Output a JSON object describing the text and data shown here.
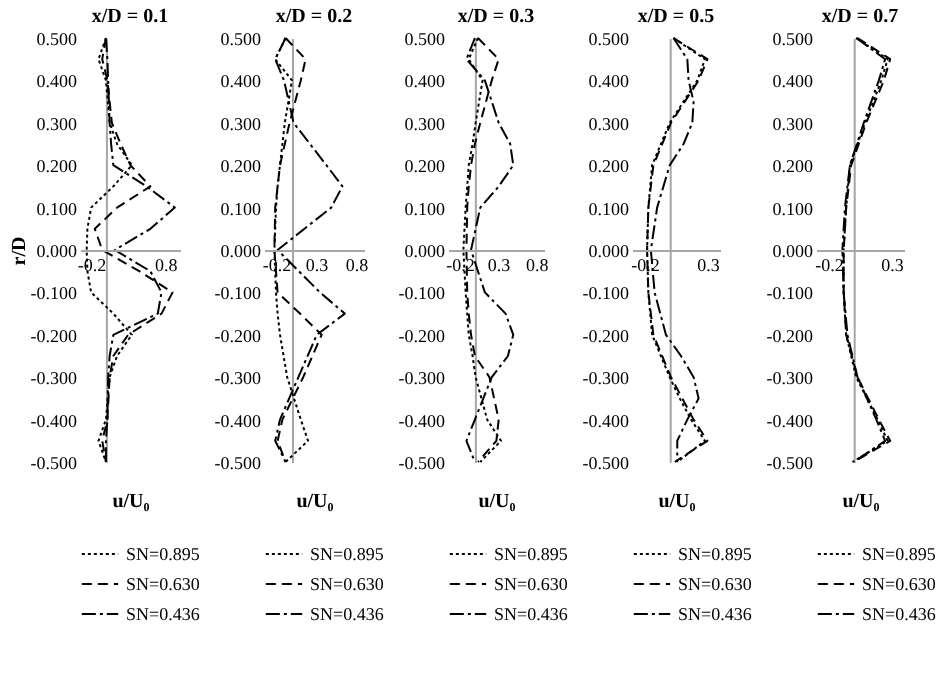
{
  "chart_data": [
    {
      "type": "line",
      "title": "x/D = 0.1",
      "xlabel": "u/U₀",
      "ylabel": "r/D",
      "xlim": [
        -0.35,
        1.0
      ],
      "xticks": [
        -0.2,
        0.8
      ],
      "ylim": [
        -0.5,
        0.5
      ],
      "yticks": [
        {
          "value": 0.5,
          "label": "0.500"
        },
        {
          "value": 0.4,
          "label": "0.400"
        },
        {
          "value": 0.3,
          "label": "0.300"
        },
        {
          "value": 0.2,
          "label": "0.200"
        },
        {
          "value": 0.1,
          "label": "0.100"
        },
        {
          "value": 0,
          "label": "0.000"
        },
        {
          "value": -0.1,
          "label": "-0.100"
        },
        {
          "value": -0.2,
          "label": "-0.200"
        },
        {
          "value": -0.3,
          "label": "-0.300"
        },
        {
          "value": -0.4,
          "label": "-0.400"
        },
        {
          "value": -0.5,
          "label": "-0.500"
        }
      ],
      "legend": "bottom",
      "series": [
        {
          "name": "SN=0.895",
          "color": "#000000",
          "line_style": "dotted",
          "x": [
            0,
            -0.1,
            0,
            0.05,
            0.15,
            0.35,
            0.1,
            -0.2,
            -0.25,
            -0.26,
            -0.25,
            -0.2,
            0.1,
            0.35,
            0.15,
            0.05,
            0,
            -0.1,
            0
          ],
          "values": [
            0.5,
            0.45,
            0.4,
            0.3,
            0.25,
            0.2,
            0.15,
            0.1,
            0.05,
            0,
            -0.05,
            -0.1,
            -0.15,
            -0.2,
            -0.25,
            -0.3,
            -0.4,
            -0.45,
            -0.5
          ]
        },
        {
          "name": "SN=0.630",
          "color": "#000000",
          "line_style": "dashed",
          "x": [
            0,
            -0.05,
            0.02,
            0.08,
            0.2,
            0.33,
            0.6,
            0.15,
            -0.15,
            -0.05,
            0.45,
            0.9,
            0.75,
            0.3,
            0.1,
            0.05,
            0.02,
            -0.05,
            0
          ],
          "values": [
            0.5,
            0.45,
            0.4,
            0.3,
            0.25,
            0.2,
            0.15,
            0.1,
            0.05,
            0,
            -0.05,
            -0.1,
            -0.15,
            -0.2,
            -0.25,
            -0.3,
            -0.4,
            -0.45,
            -0.5
          ]
        },
        {
          "name": "SN=0.436",
          "color": "#000000",
          "line_style": "dashdot",
          "x": [
            0,
            0.02,
            0.03,
            0.05,
            0.07,
            0.1,
            0.55,
            0.93,
            0.6,
            0.12,
            0.6,
            0.75,
            0.7,
            0.1,
            0.05,
            0.03,
            0.02,
            0,
            0
          ],
          "values": [
            0.5,
            0.45,
            0.4,
            0.3,
            0.25,
            0.2,
            0.15,
            0.1,
            0.05,
            0,
            -0.05,
            -0.1,
            -0.15,
            -0.2,
            -0.25,
            -0.3,
            -0.4,
            -0.45,
            -0.5
          ]
        }
      ]
    },
    {
      "type": "line",
      "title": "x/D = 0.2",
      "xlabel": "u/U₀",
      "xlim": [
        -0.35,
        0.9
      ],
      "xticks": [
        -0.2,
        0.3,
        0.8
      ],
      "ylim": [
        -0.5,
        0.5
      ],
      "yticks": [
        {
          "value": 0.5,
          "label": "0.500"
        },
        {
          "value": 0.4,
          "label": "0.400"
        },
        {
          "value": 0.3,
          "label": "0.300"
        },
        {
          "value": 0.2,
          "label": "0.200"
        },
        {
          "value": 0.1,
          "label": "0.100"
        },
        {
          "value": 0,
          "label": "0.000"
        },
        {
          "value": -0.1,
          "label": "-0.100"
        },
        {
          "value": -0.2,
          "label": "-0.200"
        },
        {
          "value": -0.3,
          "label": "-0.300"
        },
        {
          "value": -0.4,
          "label": "-0.400"
        },
        {
          "value": -0.5,
          "label": "-0.500"
        }
      ],
      "legend": "bottom",
      "series": [
        {
          "name": "SN=0.895",
          "color": "#000000",
          "line_style": "dotted",
          "x": [
            -0.08,
            -0.21,
            0,
            -0.09,
            -0.15,
            -0.18,
            -0.2,
            -0.22,
            -0.2,
            -0.18,
            -0.15,
            -0.06,
            0.11,
            0.2,
            -0.08
          ],
          "values": [
            0.5,
            0.45,
            0.4,
            0.3,
            0.2,
            0.15,
            0.1,
            0,
            -0.1,
            -0.15,
            -0.2,
            -0.3,
            -0.4,
            -0.45,
            -0.5
          ]
        },
        {
          "name": "SN=0.630",
          "color": "#000000",
          "line_style": "dashed",
          "x": [
            -0.08,
            0.17,
            0.11,
            -0.03,
            -0.15,
            -0.18,
            -0.21,
            -0.22,
            -0.18,
            0.1,
            0.37,
            0.14,
            -0.12,
            -0.18,
            -0.08
          ],
          "values": [
            0.5,
            0.45,
            0.4,
            0.3,
            0.2,
            0.15,
            0.1,
            0,
            -0.1,
            -0.15,
            -0.2,
            -0.3,
            -0.4,
            -0.45,
            -0.5
          ]
        },
        {
          "name": "SN=0.436",
          "color": "#000000",
          "line_style": "dashdot",
          "x": [
            -0.08,
            -0.21,
            -0.1,
            0.02,
            0.43,
            0.63,
            0.49,
            -0.18,
            0.35,
            0.66,
            0.31,
            0.08,
            -0.15,
            -0.21,
            -0.08
          ],
          "values": [
            0.5,
            0.45,
            0.4,
            0.3,
            0.2,
            0.15,
            0.1,
            0,
            -0.1,
            -0.15,
            -0.2,
            -0.3,
            -0.4,
            -0.45,
            -0.5
          ]
        }
      ]
    },
    {
      "type": "line",
      "title": "x/D = 0.3",
      "xlabel": "u/U₀",
      "xlim": [
        -0.35,
        0.9
      ],
      "xticks": [
        -0.2,
        0.3,
        0.8
      ],
      "ylim": [
        -0.5,
        0.5
      ],
      "yticks": [
        {
          "value": 0.5,
          "label": "0.500"
        },
        {
          "value": 0.4,
          "label": "0.400"
        },
        {
          "value": 0.3,
          "label": "0.300"
        },
        {
          "value": 0.2,
          "label": "0.200"
        },
        {
          "value": 0.1,
          "label": "0.100"
        },
        {
          "value": 0,
          "label": "0.000"
        },
        {
          "value": -0.1,
          "label": "-0.100"
        },
        {
          "value": -0.2,
          "label": "-0.200"
        },
        {
          "value": -0.3,
          "label": "-0.300"
        },
        {
          "value": -0.4,
          "label": "-0.400"
        },
        {
          "value": -0.5,
          "label": "-0.500"
        }
      ],
      "legend": "bottom",
      "series": [
        {
          "name": "SN=0.895",
          "color": "#000000",
          "line_style": "dotted",
          "x": [
            0.04,
            -0.08,
            0.1,
            0.01,
            -0.03,
            -0.08,
            -0.1,
            -0.12,
            -0.15,
            -0.12,
            -0.1,
            -0.08,
            -0.03,
            0.01,
            0.16,
            0.34,
            0.07
          ],
          "values": [
            0.5,
            0.45,
            0.4,
            0.3,
            0.25,
            0.2,
            0.15,
            0.1,
            0,
            -0.1,
            -0.15,
            -0.2,
            -0.25,
            -0.3,
            -0.4,
            -0.45,
            -0.5
          ]
        },
        {
          "name": "SN=0.630",
          "color": "#000000",
          "line_style": "dashed",
          "x": [
            0.04,
            0.31,
            0.22,
            0.07,
            0,
            -0.05,
            -0.08,
            -0.1,
            -0.11,
            -0.1,
            -0.08,
            -0.05,
            0,
            0.19,
            0.31,
            0.28,
            0.04
          ],
          "values": [
            0.5,
            0.45,
            0.4,
            0.3,
            0.25,
            0.2,
            0.15,
            0.1,
            0,
            -0.1,
            -0.15,
            -0.2,
            -0.25,
            -0.3,
            -0.4,
            -0.45,
            -0.5
          ]
        },
        {
          "name": "SN=0.436",
          "color": "#000000",
          "line_style": "dashdot",
          "x": [
            0,
            -0.11,
            0.13,
            0.31,
            0.46,
            0.5,
            0.31,
            0.07,
            -0.05,
            0.13,
            0.4,
            0.5,
            0.43,
            0.22,
            0,
            -0.11,
            0
          ],
          "values": [
            0.5,
            0.45,
            0.4,
            0.3,
            0.25,
            0.2,
            0.15,
            0.1,
            0,
            -0.1,
            -0.15,
            -0.2,
            -0.25,
            -0.3,
            -0.4,
            -0.45,
            -0.5
          ]
        }
      ]
    },
    {
      "type": "line",
      "title": "x/D = 0.5",
      "xlabel": "u/U₀",
      "xlim": [
        -0.3,
        0.4
      ],
      "xticks": [
        -0.2,
        0.3
      ],
      "ylim": [
        -0.5,
        0.5
      ],
      "yticks": [
        {
          "value": 0.5,
          "label": "0.500"
        },
        {
          "value": 0.4,
          "label": "0.400"
        },
        {
          "value": 0.3,
          "label": "0.300"
        },
        {
          "value": 0.2,
          "label": "0.200"
        },
        {
          "value": 0.1,
          "label": "0.100"
        },
        {
          "value": 0,
          "label": "0.000"
        },
        {
          "value": -0.1,
          "label": "-0.100"
        },
        {
          "value": -0.2,
          "label": "-0.200"
        },
        {
          "value": -0.3,
          "label": "-0.300"
        },
        {
          "value": -0.4,
          "label": "-0.400"
        },
        {
          "value": -0.5,
          "label": "-0.500"
        }
      ],
      "legend": "bottom",
      "series": [
        {
          "name": "SN=0.895",
          "color": "#000000",
          "line_style": "dotted",
          "x": [
            0.03,
            0.28,
            0.22,
            0.11,
            0,
            -0.07,
            -0.14,
            -0.17,
            -0.18,
            -0.17,
            -0.14,
            -0.07,
            0,
            0.08,
            0.17,
            0.28,
            0.06
          ],
          "values": [
            0.5,
            0.45,
            0.4,
            0.35,
            0.3,
            0.25,
            0.2,
            0.1,
            0,
            -0.1,
            -0.2,
            -0.25,
            -0.3,
            -0.35,
            -0.4,
            -0.45,
            -0.5
          ]
        },
        {
          "name": "SN=0.630",
          "color": "#000000",
          "line_style": "dashed",
          "x": [
            0.03,
            0.3,
            0.23,
            0.12,
            0.01,
            -0.06,
            -0.13,
            -0.17,
            -0.18,
            -0.17,
            -0.13,
            -0.06,
            0.01,
            0.1,
            0.19,
            0.3,
            0.04
          ],
          "values": [
            0.5,
            0.45,
            0.4,
            0.35,
            0.3,
            0.25,
            0.2,
            0.1,
            0,
            -0.1,
            -0.2,
            -0.25,
            -0.3,
            -0.35,
            -0.4,
            -0.45,
            -0.5
          ]
        },
        {
          "name": "SN=0.436",
          "color": "#000000",
          "line_style": "dashdot",
          "x": [
            0.03,
            0.14,
            0.15,
            0.19,
            0.18,
            0.11,
            0,
            -0.1,
            -0.15,
            -0.12,
            -0.03,
            0.09,
            0.19,
            0.23,
            0.14,
            0.06,
            0.06
          ],
          "values": [
            0.5,
            0.45,
            0.4,
            0.35,
            0.3,
            0.25,
            0.2,
            0.1,
            0,
            -0.1,
            -0.2,
            -0.25,
            -0.3,
            -0.35,
            -0.4,
            -0.45,
            -0.5
          ]
        }
      ]
    },
    {
      "type": "line",
      "title": "x/D = 0.7",
      "xlabel": "u/U₀",
      "xlim": [
        -0.3,
        0.4
      ],
      "xticks": [
        -0.2,
        0.3
      ],
      "ylim": [
        -0.5,
        0.5
      ],
      "yticks": [
        {
          "value": 0.5,
          "label": "0.500"
        },
        {
          "value": 0.4,
          "label": "0.400"
        },
        {
          "value": 0.3,
          "label": "0.300"
        },
        {
          "value": 0.2,
          "label": "0.200"
        },
        {
          "value": 0.1,
          "label": "0.100"
        },
        {
          "value": 0,
          "label": "0.000"
        },
        {
          "value": -0.1,
          "label": "-0.100"
        },
        {
          "value": -0.2,
          "label": "-0.200"
        },
        {
          "value": -0.3,
          "label": "-0.300"
        },
        {
          "value": -0.4,
          "label": "-0.400"
        },
        {
          "value": -0.5,
          "label": "-0.500"
        }
      ],
      "legend": "bottom",
      "series": [
        {
          "name": "SN=0.895",
          "color": "#000000",
          "line_style": "dotted",
          "x": [
            0.02,
            0.27,
            0.22,
            0.09,
            -0.03,
            -0.06,
            -0.08,
            -0.08,
            -0.06,
            0.02,
            0.19,
            0.27,
            -0.01
          ],
          "values": [
            0.5,
            0.45,
            0.4,
            0.3,
            0.2,
            0.1,
            0,
            -0.1,
            -0.2,
            -0.3,
            -0.4,
            -0.45,
            -0.5
          ]
        },
        {
          "name": "SN=0.630",
          "color": "#000000",
          "line_style": "dashed",
          "x": [
            0.03,
            0.29,
            0.24,
            0.1,
            -0.02,
            -0.06,
            -0.08,
            -0.08,
            -0.06,
            0.03,
            0.2,
            0.29,
            0
          ],
          "values": [
            0.5,
            0.45,
            0.4,
            0.3,
            0.2,
            0.1,
            0,
            -0.1,
            -0.2,
            -0.3,
            -0.4,
            -0.45,
            -0.5
          ]
        },
        {
          "name": "SN=0.436",
          "color": "#000000",
          "line_style": "dashdot",
          "x": [
            0.02,
            0.25,
            0.2,
            0.08,
            -0.03,
            -0.07,
            -0.09,
            -0.08,
            -0.05,
            0.03,
            0.18,
            0.25,
            0
          ],
          "values": [
            0.5,
            0.45,
            0.4,
            0.3,
            0.2,
            0.1,
            0,
            -0.1,
            -0.2,
            -0.3,
            -0.4,
            -0.45,
            -0.5
          ]
        }
      ]
    }
  ]
}
